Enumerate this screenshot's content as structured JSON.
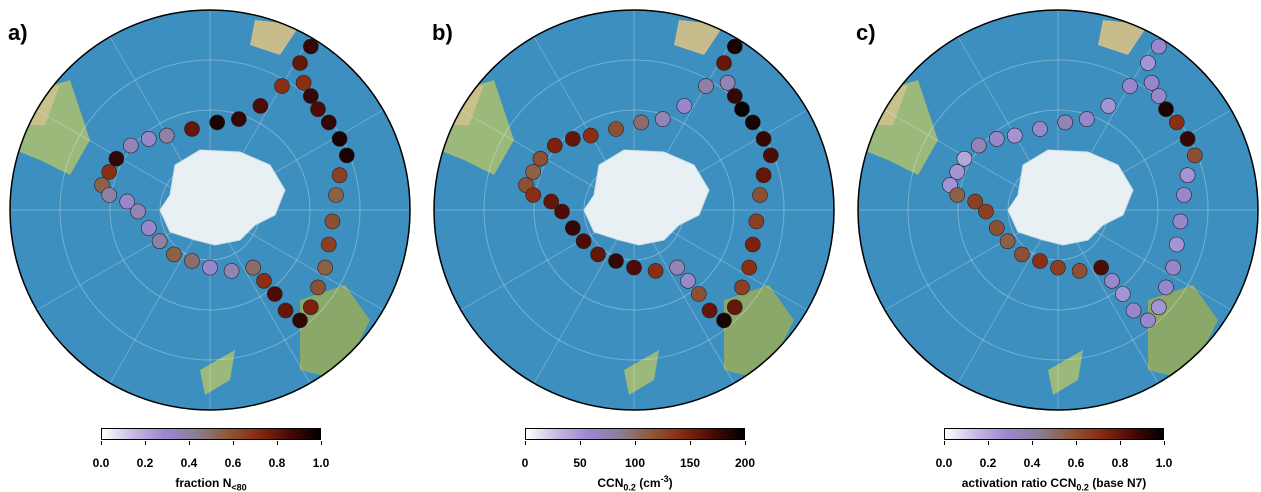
{
  "panels": [
    {
      "label": "a)",
      "colorbar": {
        "ticks": [
          "0.0",
          "0.2",
          "0.4",
          "0.6",
          "0.8",
          "1.0"
        ],
        "title_main": "fraction N",
        "title_sub": "<80",
        "title_rest": "",
        "title_sup": "",
        "title_tail": ""
      }
    },
    {
      "label": "b)",
      "colorbar": {
        "ticks": [
          "0",
          "50",
          "100",
          "150",
          "200"
        ],
        "title_main": "CCN",
        "title_sub": "0.2",
        "title_rest": " (cm",
        "title_sup": "-3",
        "title_tail": ")"
      }
    },
    {
      "label": "c)",
      "colorbar": {
        "ticks": [
          "0.0",
          "0.2",
          "0.4",
          "0.6",
          "0.8",
          "1.0"
        ],
        "title_main": "activation ratio CCN",
        "title_sub": "0.2",
        "title_rest": " (base N",
        "title_sup": "",
        "title_tail": "7)"
      }
    }
  ],
  "colors": {
    "ocean": "#3c8fbf",
    "land": "#e8f0f4",
    "colormap": [
      "#ffffff",
      "#c6b9e3",
      "#9a88cf",
      "#8a7f9a",
      "#8e5a3a",
      "#8a2a10",
      "#4a0a05",
      "#000000"
    ]
  }
}
